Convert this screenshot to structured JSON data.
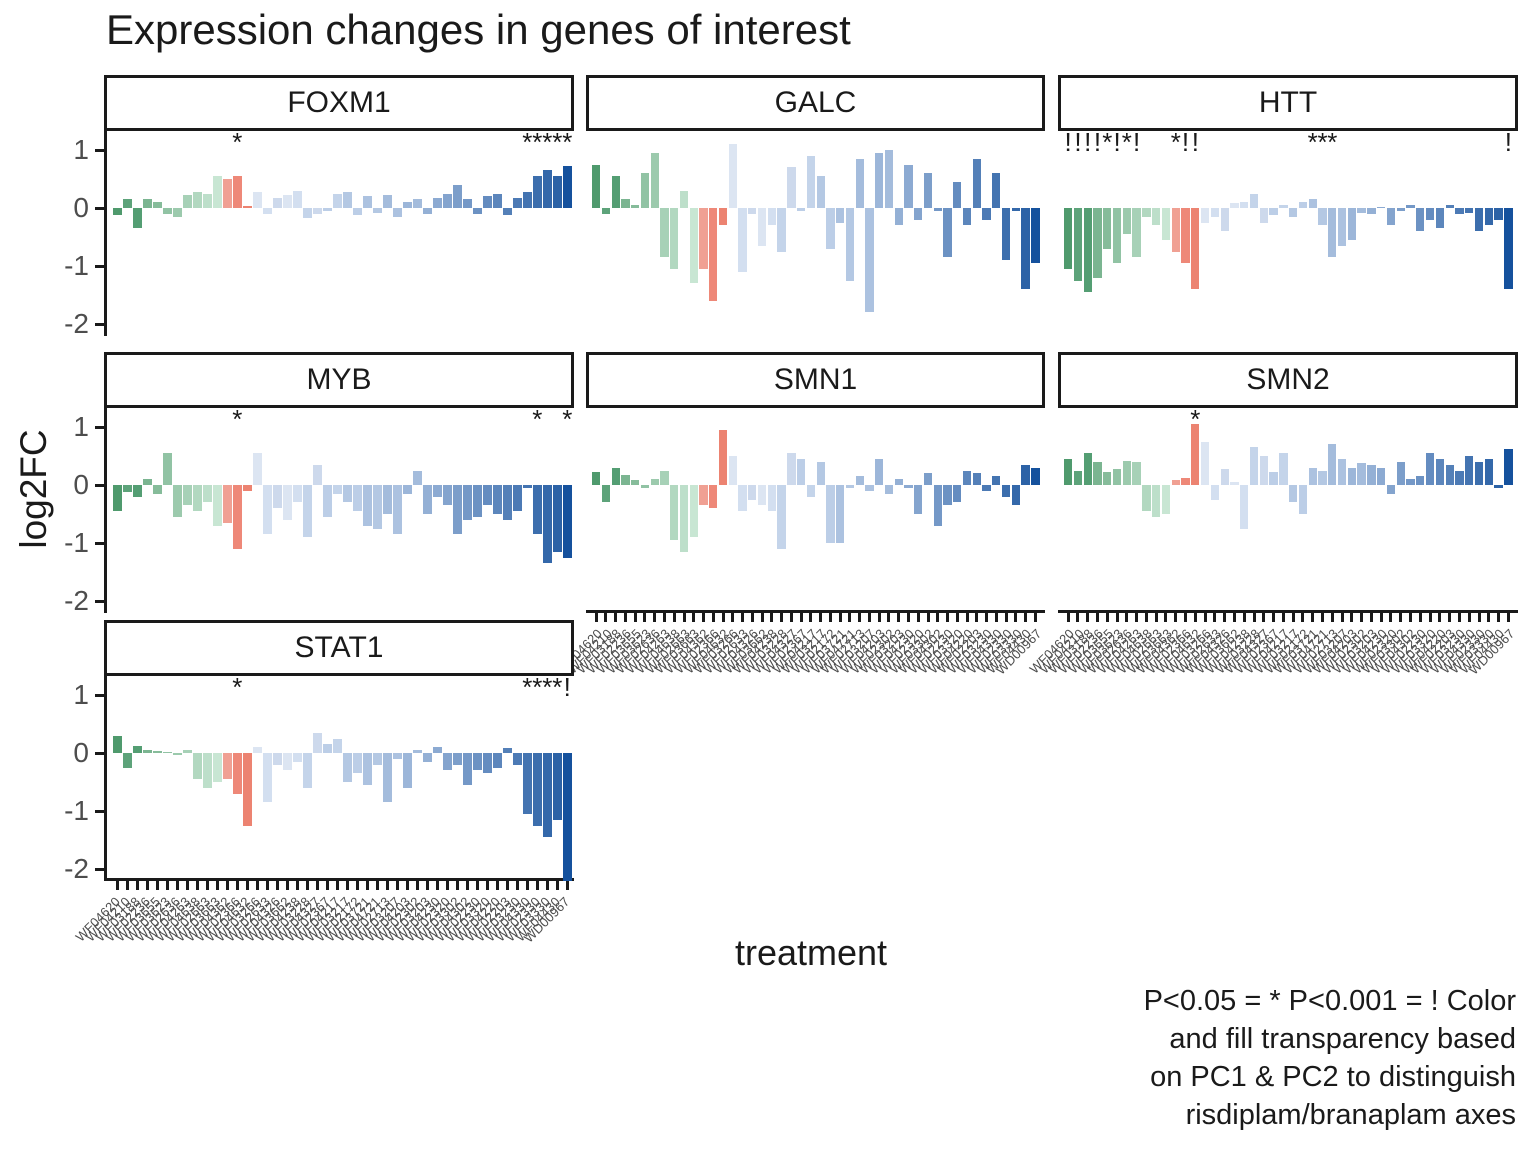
{
  "title": "Expression changes in genes of interest",
  "axes": {
    "y_label": "log2FC",
    "x_label": "treatment",
    "y_ticks": [
      "1",
      "0",
      "-1",
      "-2"
    ]
  },
  "caption": {
    "lines": [
      "P<0.05 = * P<0.001 = ! Color",
      "and fill transparency based",
      "on PC1 & PC2 to distinguish",
      "risdiplam/branaplam axes"
    ]
  },
  "chart_data": {
    "type": "bar",
    "title": "Expression changes in genes of interest",
    "xlabel": "treatment",
    "ylabel": "log2FC",
    "ylim": [
      -2.35,
      1.3
    ],
    "grid": false,
    "legend": "none",
    "significance_legend": {
      "*": "P<0.05",
      "!": "P<0.001"
    },
    "color_note": "color and fill transparency based on PC1 & PC2 to distinguish risdiplam/branaplam axes; greens then salmon then blues",
    "categories": [
      "WF04620",
      "WF04210",
      "WF03188",
      "WF02236",
      "WF03655",
      "WF03623",
      "WF02636",
      "WF04263",
      "WF04638",
      "WF02663",
      "WF03663",
      "WF04362",
      "WF02366",
      "WF04632",
      "WF03266",
      "WF02633",
      "WF04326",
      "WF03662",
      "WF04238",
      "WF03228",
      "WF04327",
      "WF02367",
      "WF04217",
      "WF03217",
      "WF02172",
      "WF03721",
      "WF04721",
      "WF02713",
      "WF03207",
      "WF04203",
      "WF02302",
      "WF03203",
      "WF04230",
      "WF02320",
      "WF03302",
      "WF04302",
      "WF02230",
      "WF03320",
      "WF04220",
      "WF02203",
      "WF03230",
      "WF04330",
      "WF02330",
      "WF03330",
      "WF04430",
      "WD00967"
    ],
    "bar_colors": [
      "#4f9a6d",
      "#5da37a",
      "#549e73",
      "#7bb591",
      "#86bc9a",
      "#91c3a4",
      "#9ccaad",
      "#a7d1b7",
      "#b2d8c0",
      "#bddfca",
      "#c8e6d3",
      "#f0a093",
      "#ee8878",
      "#ec8371",
      "#dce5f2",
      "#d3dff0",
      "#cdd9ec",
      "#dce5f2",
      "#d3dff0",
      "#c4d4ea",
      "#cdd9ec",
      "#bccee7",
      "#c4d4ea",
      "#b4c8e3",
      "#bccee7",
      "#acc2e0",
      "#b4c8e3",
      "#a4bcdc",
      "#acc2e0",
      "#9cb6d9",
      "#a4bcdc",
      "#94b0d5",
      "#8caad2",
      "#84a4ce",
      "#7c9eca",
      "#7498c7",
      "#6c92c3",
      "#648cc0",
      "#5c86bc",
      "#5480b8",
      "#4c7ab5",
      "#4474b1",
      "#3c6ead",
      "#3468aa",
      "#2c62a6",
      "#15519d"
    ],
    "facets": [
      {
        "name": "FOXM1",
        "values": [
          -0.12,
          0.15,
          -0.35,
          0.15,
          0.1,
          -0.1,
          -0.15,
          0.22,
          0.28,
          0.25,
          0.55,
          0.5,
          0.55,
          0.03,
          0.28,
          -0.1,
          0.18,
          0.22,
          0.3,
          -0.18,
          -0.1,
          -0.05,
          0.25,
          0.28,
          -0.12,
          0.2,
          -0.08,
          0.22,
          -0.15,
          0.1,
          0.15,
          -0.1,
          0.18,
          0.25,
          0.4,
          0.15,
          -0.1,
          0.2,
          0.25,
          -0.12,
          0.18,
          0.28,
          0.55,
          0.65,
          0.55,
          0.72
        ],
        "sig": [
          {
            "i": 12,
            "s": "*"
          },
          {
            "i": 41,
            "s": "*"
          },
          {
            "i": 42,
            "s": "*"
          },
          {
            "i": 43,
            "s": "*"
          },
          {
            "i": 44,
            "s": "*"
          },
          {
            "i": 45,
            "s": "*"
          }
        ]
      },
      {
        "name": "GALC",
        "values": [
          0.75,
          -0.1,
          0.55,
          0.15,
          0.05,
          0.6,
          0.95,
          -0.85,
          -1.05,
          0.3,
          -1.3,
          -1.05,
          -1.6,
          -0.3,
          1.1,
          -1.1,
          -0.1,
          -0.65,
          -0.3,
          -0.75,
          0.7,
          -0.05,
          0.9,
          0.55,
          -0.7,
          -0.25,
          -1.25,
          0.85,
          -1.8,
          0.95,
          1.0,
          -0.3,
          0.75,
          -0.2,
          0.6,
          -0.05,
          -0.85,
          0.45,
          -0.3,
          0.85,
          -0.2,
          0.6,
          -0.9,
          -0.05,
          -1.4,
          -0.95
        ],
        "sig": []
      },
      {
        "name": "HTT",
        "values": [
          -1.05,
          -1.25,
          -1.45,
          -1.2,
          -0.7,
          -0.95,
          -0.45,
          -0.85,
          -0.15,
          -0.3,
          -0.55,
          -0.75,
          -0.95,
          -1.4,
          -0.25,
          -0.15,
          -0.4,
          0.08,
          0.1,
          0.25,
          -0.25,
          -0.12,
          0.06,
          -0.15,
          0.1,
          0.15,
          -0.3,
          -0.85,
          -0.65,
          -0.55,
          -0.08,
          -0.1,
          0.02,
          -0.3,
          -0.05,
          0.06,
          -0.4,
          -0.2,
          -0.35,
          0.05,
          -0.1,
          -0.08,
          -0.4,
          -0.3,
          -0.2,
          -1.4
        ],
        "sig": [
          {
            "i": 0,
            "s": "!"
          },
          {
            "i": 1,
            "s": "!"
          },
          {
            "i": 2,
            "s": "!"
          },
          {
            "i": 3,
            "s": "!"
          },
          {
            "i": 4,
            "s": "*"
          },
          {
            "i": 5,
            "s": "!"
          },
          {
            "i": 6,
            "s": "*"
          },
          {
            "i": 7,
            "s": "!"
          },
          {
            "i": 11,
            "s": "*"
          },
          {
            "i": 12,
            "s": "!"
          },
          {
            "i": 13,
            "s": "!"
          },
          {
            "i": 25,
            "s": "*"
          },
          {
            "i": 26,
            "s": "*"
          },
          {
            "i": 27,
            "s": "*"
          },
          {
            "i": 45,
            "s": "!"
          }
        ]
      },
      {
        "name": "MYB",
        "values": [
          -0.45,
          -0.12,
          -0.2,
          0.1,
          -0.15,
          0.55,
          -0.55,
          -0.35,
          -0.45,
          -0.3,
          -0.7,
          -0.65,
          -1.1,
          -0.1,
          0.55,
          -0.85,
          -0.4,
          -0.6,
          -0.3,
          -0.9,
          0.35,
          -0.55,
          -0.15,
          -0.3,
          -0.45,
          -0.7,
          -0.75,
          -0.5,
          -0.85,
          -0.15,
          0.25,
          -0.5,
          -0.2,
          -0.35,
          -0.85,
          -0.6,
          -0.55,
          -0.35,
          -0.5,
          -0.6,
          -0.45,
          -0.05,
          -0.85,
          -1.35,
          -1.15,
          -1.25
        ],
        "sig": [
          {
            "i": 12,
            "s": "*"
          },
          {
            "i": 42,
            "s": "*"
          },
          {
            "i": 45,
            "s": "*"
          }
        ]
      },
      {
        "name": "SMN1",
        "values": [
          0.22,
          -0.3,
          0.3,
          0.18,
          0.08,
          -0.05,
          0.1,
          0.25,
          -0.95,
          -1.15,
          -0.9,
          -0.35,
          -0.4,
          0.95,
          0.5,
          -0.45,
          -0.25,
          -0.35,
          -0.45,
          -1.1,
          0.55,
          0.45,
          -0.2,
          0.4,
          -1.0,
          -1.0,
          -0.05,
          0.15,
          -0.1,
          0.45,
          -0.15,
          0.1,
          -0.05,
          -0.5,
          0.2,
          -0.7,
          -0.35,
          -0.3,
          0.25,
          0.2,
          -0.1,
          0.15,
          -0.2,
          -0.35,
          0.35,
          0.3
        ],
        "sig": []
      },
      {
        "name": "SMN2",
        "values": [
          0.45,
          0.25,
          0.55,
          0.4,
          0.22,
          0.28,
          0.42,
          0.4,
          -0.45,
          -0.55,
          -0.5,
          0.08,
          0.12,
          1.05,
          0.75,
          -0.25,
          0.28,
          0.05,
          -0.75,
          0.65,
          0.5,
          0.22,
          0.55,
          -0.3,
          -0.5,
          0.3,
          0.25,
          0.7,
          0.45,
          0.3,
          0.38,
          0.35,
          0.3,
          -0.15,
          0.4,
          0.1,
          0.15,
          0.55,
          0.45,
          0.35,
          0.25,
          0.5,
          0.4,
          0.45,
          -0.05,
          0.62
        ],
        "sig": [
          {
            "i": 13,
            "s": "*"
          }
        ]
      },
      {
        "name": "STAT1",
        "values": [
          0.3,
          -0.25,
          0.12,
          0.05,
          0.04,
          0.02,
          -0.03,
          0.06,
          -0.45,
          -0.6,
          -0.5,
          -0.45,
          -0.7,
          -1.25,
          0.1,
          -0.85,
          -0.2,
          -0.3,
          -0.15,
          -0.6,
          0.35,
          0.15,
          0.25,
          -0.5,
          -0.35,
          -0.55,
          -0.2,
          -0.85,
          -0.1,
          -0.6,
          0.05,
          -0.15,
          0.1,
          -0.3,
          -0.2,
          -0.55,
          -0.3,
          -0.35,
          -0.25,
          0.08,
          -0.2,
          -1.05,
          -1.25,
          -1.45,
          -1.15,
          -2.2
        ],
        "sig": [
          {
            "i": 12,
            "s": "*"
          },
          {
            "i": 41,
            "s": "*"
          },
          {
            "i": 42,
            "s": "*"
          },
          {
            "i": 43,
            "s": "*"
          },
          {
            "i": 44,
            "s": "*"
          },
          {
            "i": 45,
            "s": "!"
          }
        ]
      }
    ]
  },
  "style_colors": {
    "axis_line": "#1a1a1a",
    "tick_text": "#4d4d4d",
    "panel_border": "#1a1a1a",
    "background": "#ffffff"
  }
}
